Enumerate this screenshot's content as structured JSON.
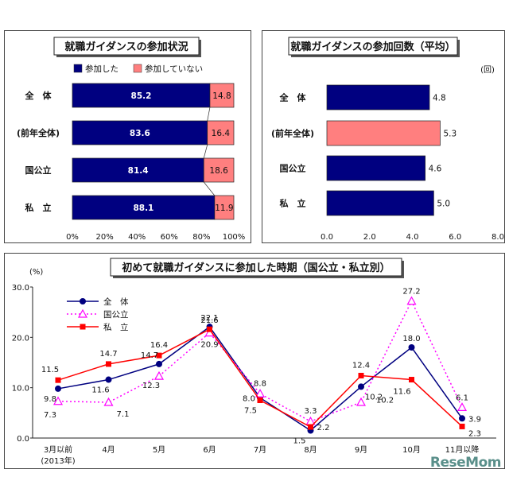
{
  "chart_data": [
    {
      "type": "bar",
      "stacked": true,
      "orientation": "horizontal",
      "title": "就職ガイダンスの参加状況",
      "categories": [
        "全　体",
        "(前年全体)",
        "国公立",
        "私　立"
      ],
      "series": [
        {
          "name": "参加した",
          "values": [
            85.2,
            83.6,
            81.4,
            88.1
          ],
          "color": "#000080"
        },
        {
          "name": "参加していない",
          "values": [
            14.8,
            16.4,
            18.6,
            11.9
          ],
          "color": "#ff7f7f"
        }
      ],
      "value_labels": [
        [
          "85.2",
          "83.6",
          "81.4",
          "88.1"
        ],
        [
          "14.8",
          "16.4",
          "18.6",
          "11.9"
        ]
      ],
      "xlim": [
        0,
        100
      ],
      "xticks": [
        "0%",
        "20%",
        "40%",
        "60%",
        "80%",
        "100%"
      ],
      "legend": "top"
    },
    {
      "type": "bar",
      "orientation": "horizontal",
      "title": "就職ガイダンスの参加回数（平均）",
      "unit": "(回)",
      "categories": [
        "全　体",
        "(前年全体)",
        "国公立",
        "私　立"
      ],
      "values": [
        4.8,
        5.3,
        4.6,
        5.0
      ],
      "value_labels": [
        "4.8",
        "5.3",
        "4.6",
        "5.0"
      ],
      "colors": [
        "#000080",
        "#ff7f7f",
        "#000080",
        "#000080"
      ],
      "xlim": [
        0,
        8
      ],
      "xticks": [
        "0.0",
        "2.0",
        "4.0",
        "6.0",
        "8.0"
      ]
    },
    {
      "type": "line",
      "title": "初めて就職ガイダンスに参加した時期（国公立・私立別）",
      "ylabel": "(%)",
      "categories": [
        "3月以前",
        "4月",
        "5月",
        "6月",
        "7月",
        "8月",
        "9月",
        "10月",
        "11月以降"
      ],
      "category_sub": {
        "0": "(2013年)"
      },
      "ylim": [
        0,
        30
      ],
      "yticks": [
        "0.0",
        "10.0",
        "20.0",
        "30.0"
      ],
      "series": [
        {
          "name": "全　体",
          "values": [
            9.8,
            11.6,
            14.7,
            22.1,
            8.0,
            1.5,
            10.2,
            18.0,
            3.9
          ],
          "color": "#000080",
          "marker": "circle",
          "dash": "solid",
          "labels": [
            "9.8",
            "11.6",
            "",
            "",
            "8.0",
            "1.5",
            "10.2",
            "18.0",
            "3.9"
          ]
        },
        {
          "name": "国公立",
          "values": [
            7.3,
            7.1,
            12.3,
            20.9,
            8.8,
            3.3,
            7.1,
            27.2,
            6.1
          ],
          "color": "#ff00ff",
          "marker": "triangle",
          "dash": "dotted",
          "labels": [
            "7.3",
            "7.1",
            "12.3",
            "20.9",
            "8.8",
            "3.3",
            "",
            "27.2",
            "6.1"
          ]
        },
        {
          "name": "私　立",
          "values": [
            11.5,
            14.7,
            16.4,
            21.6,
            7.5,
            2.2,
            12.4,
            11.6,
            2.3
          ],
          "color": "#ff0000",
          "marker": "square",
          "dash": "solid",
          "labels": [
            "11.5",
            "14.7",
            "16.4",
            "21.6",
            "7.5",
            "2.2",
            "12.4",
            "11.6",
            "2.3"
          ]
        }
      ],
      "legend": "top-left",
      "grid": false
    }
  ],
  "watermark": "ReseMom"
}
